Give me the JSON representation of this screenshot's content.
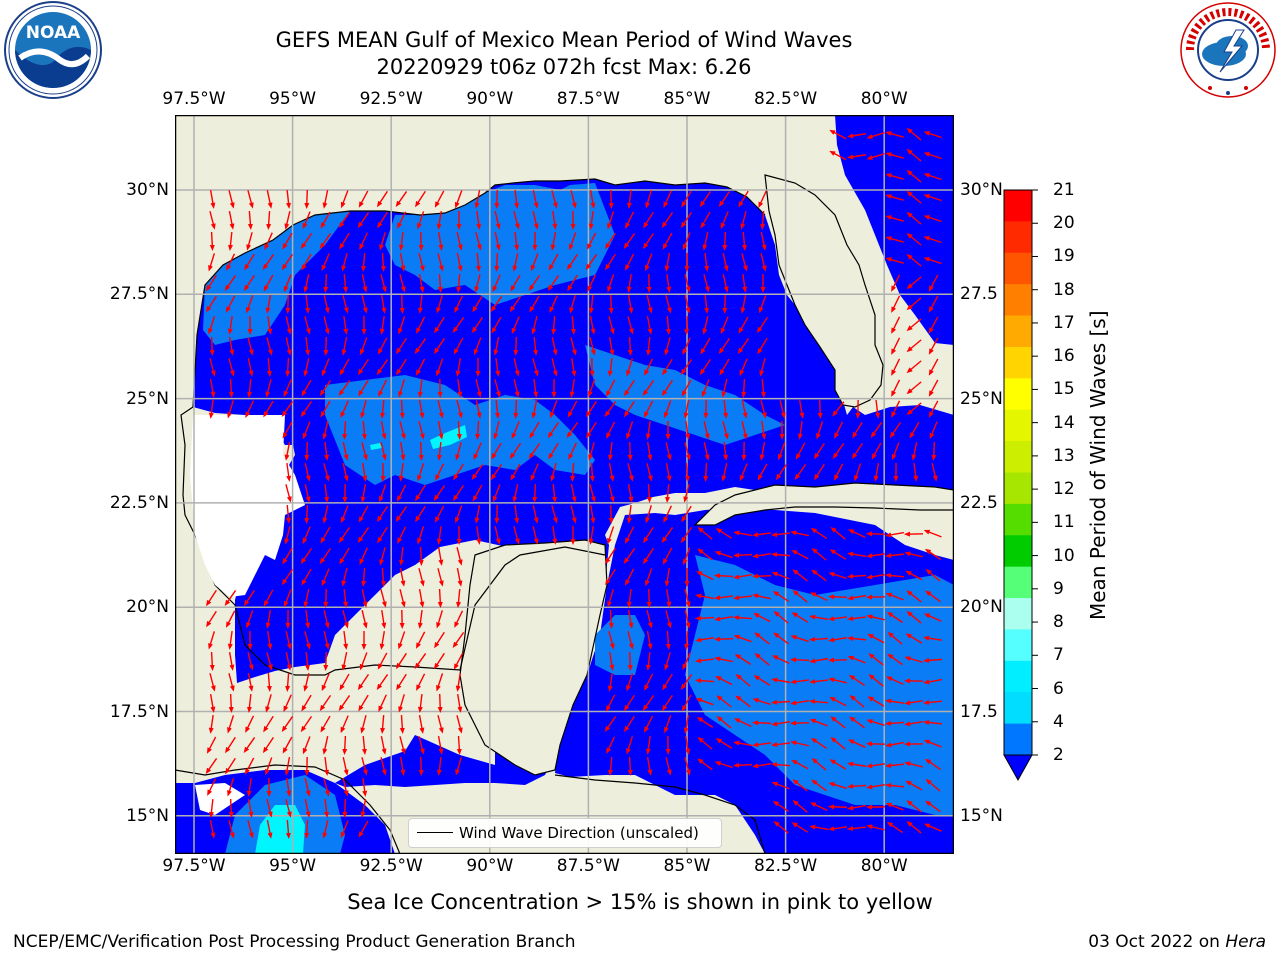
{
  "title": {
    "line1": "GEFS MEAN Gulf of Mexico Mean Period of Wind Waves",
    "line2": "20220929 t06z 072h fcst   Max: 6.26"
  },
  "logos": {
    "left": "NOAA",
    "left_ring": "NATIONAL OCEANIC AND ATMOSPHERIC ADMINISTRATION · U.S. DEPARTMENT OF COMMERCE",
    "right_ring": "NATIONAL WEATHER SERVICE"
  },
  "map": {
    "lon_ticks": [
      "97.5°W",
      "95°W",
      "92.5°W",
      "90°W",
      "87.5°W",
      "85°W",
      "82.5°W",
      "80°W"
    ],
    "lat_ticks_left": [
      "30°N",
      "27.5°N",
      "25°N",
      "22.5°N",
      "20°N",
      "17.5°N",
      "15°N"
    ],
    "lat_ticks_right": [
      "30°N",
      "27.5",
      "25°N",
      "22.5",
      "20°N",
      "17.5",
      "15°N"
    ],
    "extent": {
      "lon": [
        -98,
        -78.3
      ],
      "lat": [
        14,
        31.8
      ]
    },
    "colors": {
      "land": "#eeeedc",
      "water_low": "#0000ff",
      "water_mid": "#0a7cf5",
      "water_high": "#00f5ff",
      "arrow": "#ff0000",
      "grid": "#b0b0b0"
    },
    "legend": "Wind Wave Direction (unscaled)"
  },
  "colorbar": {
    "label": "Mean Period of Wind Waves [s]",
    "ticks": [
      "21",
      "20",
      "19",
      "18",
      "17",
      "16",
      "15",
      "14",
      "13",
      "12",
      "11",
      "10",
      "9",
      "8",
      "7",
      "6",
      "4",
      "2"
    ],
    "colors": [
      "#ff0000",
      "#ff2a00",
      "#ff5500",
      "#ff8000",
      "#ffaa00",
      "#ffd400",
      "#ffff00",
      "#e5f700",
      "#ccee00",
      "#a6e600",
      "#55dd00",
      "#00cc00",
      "#55ff77",
      "#aaffee",
      "#55ffff",
      "#00eeff",
      "#00ddff",
      "#0077ff"
    ],
    "extend_color": "#0000ff"
  },
  "notes": {
    "sea_ice": "Sea Ice Concentration > 15% is shown in pink to yellow",
    "footer_left": "NCEP/EMC/Verification Post Processing Product Generation Branch",
    "footer_right_date": "03 Oct 2022 on ",
    "footer_right_host": "Hera"
  }
}
